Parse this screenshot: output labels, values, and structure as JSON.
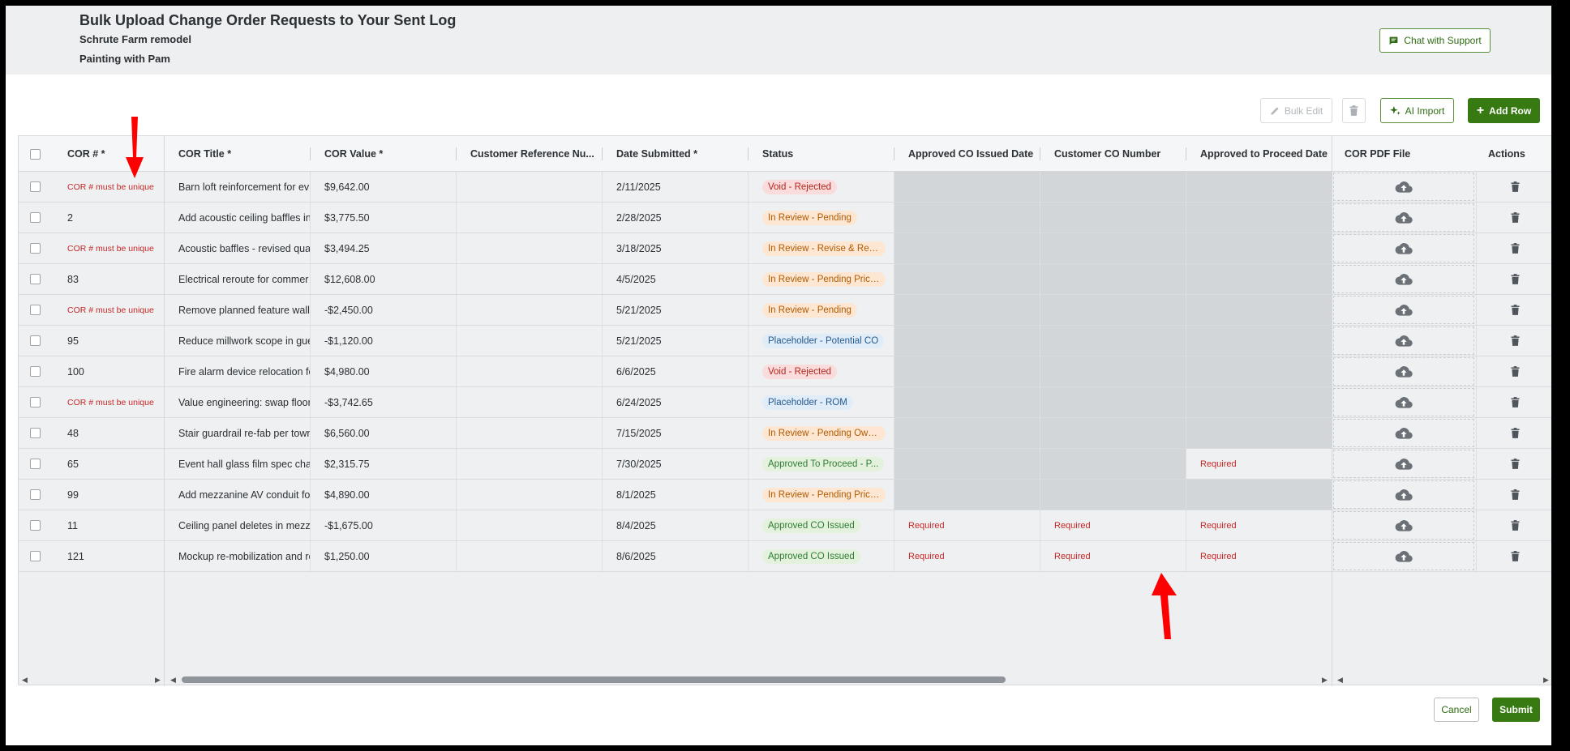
{
  "page": {
    "title": "Bulk Upload Change Order Requests to Your Sent Log",
    "project": "Schrute Farm remodel",
    "company": "Painting with Pam",
    "support_label": "Chat with Support"
  },
  "toolbar": {
    "bulk_edit_label": "Bulk Edit",
    "ai_import_label": "AI Import",
    "add_row_label": "Add Row"
  },
  "columns": {
    "cor_num": "COR # *",
    "title": "COR Title *",
    "value": "COR Value *",
    "customer_ref": "Customer Reference Nu...",
    "date_submitted": "Date Submitted *",
    "status": "Status",
    "approved_co_date": "Approved CO Issued Date",
    "customer_co_number": "Customer CO Number",
    "approved_proceed_date": "Approved to Proceed Date",
    "pdf": "COR PDF File",
    "actions": "Actions"
  },
  "rows": [
    {
      "cor": "COR # must be unique",
      "title": "Barn loft reinforcement for ev",
      "value": "$9,642.00",
      "date": "2/11/2025",
      "status": "Void - Rejected",
      "status_color": "red",
      "approved_co_date": "",
      "customer_co": "",
      "proceed_date": ""
    },
    {
      "cor": "2",
      "title": "Add acoustic ceiling baffles in",
      "value": "$3,775.50",
      "date": "2/28/2025",
      "status": "In Review - Pending",
      "status_color": "orange",
      "approved_co_date": "",
      "customer_co": "",
      "proceed_date": ""
    },
    {
      "cor": "COR # must be unique",
      "title": "Acoustic baffles - revised qua",
      "value": "$3,494.25",
      "date": "3/18/2025",
      "status": "In Review - Revise & Res...",
      "status_color": "orange",
      "approved_co_date": "",
      "customer_co": "",
      "proceed_date": ""
    },
    {
      "cor": "83",
      "title": "Electrical reroute for commer",
      "value": "$12,608.00",
      "date": "4/5/2025",
      "status": "In Review - Pending Prici...",
      "status_color": "orange",
      "approved_co_date": "",
      "customer_co": "",
      "proceed_date": ""
    },
    {
      "cor": "COR # must be unique",
      "title": "Remove planned feature wall",
      "value": "-$2,450.00",
      "date": "5/21/2025",
      "status": "In Review - Pending",
      "status_color": "orange",
      "approved_co_date": "",
      "customer_co": "",
      "proceed_date": ""
    },
    {
      "cor": "95",
      "title": "Reduce millwork scope in gue",
      "value": "-$1,120.00",
      "date": "5/21/2025",
      "status": "Placeholder - Potential CO",
      "status_color": "blue",
      "approved_co_date": "",
      "customer_co": "",
      "proceed_date": ""
    },
    {
      "cor": "100",
      "title": "Fire alarm device relocation fo",
      "value": "$4,980.00",
      "date": "6/6/2025",
      "status": "Void - Rejected",
      "status_color": "red",
      "approved_co_date": "",
      "customer_co": "",
      "proceed_date": ""
    },
    {
      "cor": "COR # must be unique",
      "title": "Value engineering: swap floor",
      "value": "-$3,742.65",
      "date": "6/24/2025",
      "status": "Placeholder - ROM",
      "status_color": "blue",
      "approved_co_date": "",
      "customer_co": "",
      "proceed_date": ""
    },
    {
      "cor": "48",
      "title": "Stair guardrail re-fab per town",
      "value": "$6,560.00",
      "date": "7/15/2025",
      "status": "In Review - Pending Own...",
      "status_color": "orange",
      "approved_co_date": "",
      "customer_co": "",
      "proceed_date": ""
    },
    {
      "cor": "65",
      "title": "Event hall glass film spec cha",
      "value": "$2,315.75",
      "date": "7/30/2025",
      "status": "Approved To Proceed - P...",
      "status_color": "green",
      "approved_co_date": "",
      "customer_co": "",
      "proceed_date": "Required"
    },
    {
      "cor": "99",
      "title": "Add mezzanine AV conduit fo",
      "value": "$4,890.00",
      "date": "8/1/2025",
      "status": "In Review - Pending Prici...",
      "status_color": "orange",
      "approved_co_date": "",
      "customer_co": "",
      "proceed_date": ""
    },
    {
      "cor": "11",
      "title": "Ceiling panel deletes in mezza",
      "value": "-$1,675.00",
      "date": "8/4/2025",
      "status": "Approved CO Issued",
      "status_color": "green",
      "approved_co_date": "Required",
      "customer_co": "Required",
      "proceed_date": "Required"
    },
    {
      "cor": "121",
      "title": "Mockup re-mobilization and re",
      "value": "$1,250.00",
      "date": "8/6/2025",
      "status": "Approved CO Issued",
      "status_color": "green",
      "approved_co_date": "Required",
      "customer_co": "Required",
      "proceed_date": "Required"
    }
  ],
  "footer": {
    "cancel_label": "Cancel",
    "submit_label": "Submit"
  },
  "colors": {
    "primary": "#377a12",
    "error": "#c62828",
    "annotation_arrow": "#ff0000"
  }
}
